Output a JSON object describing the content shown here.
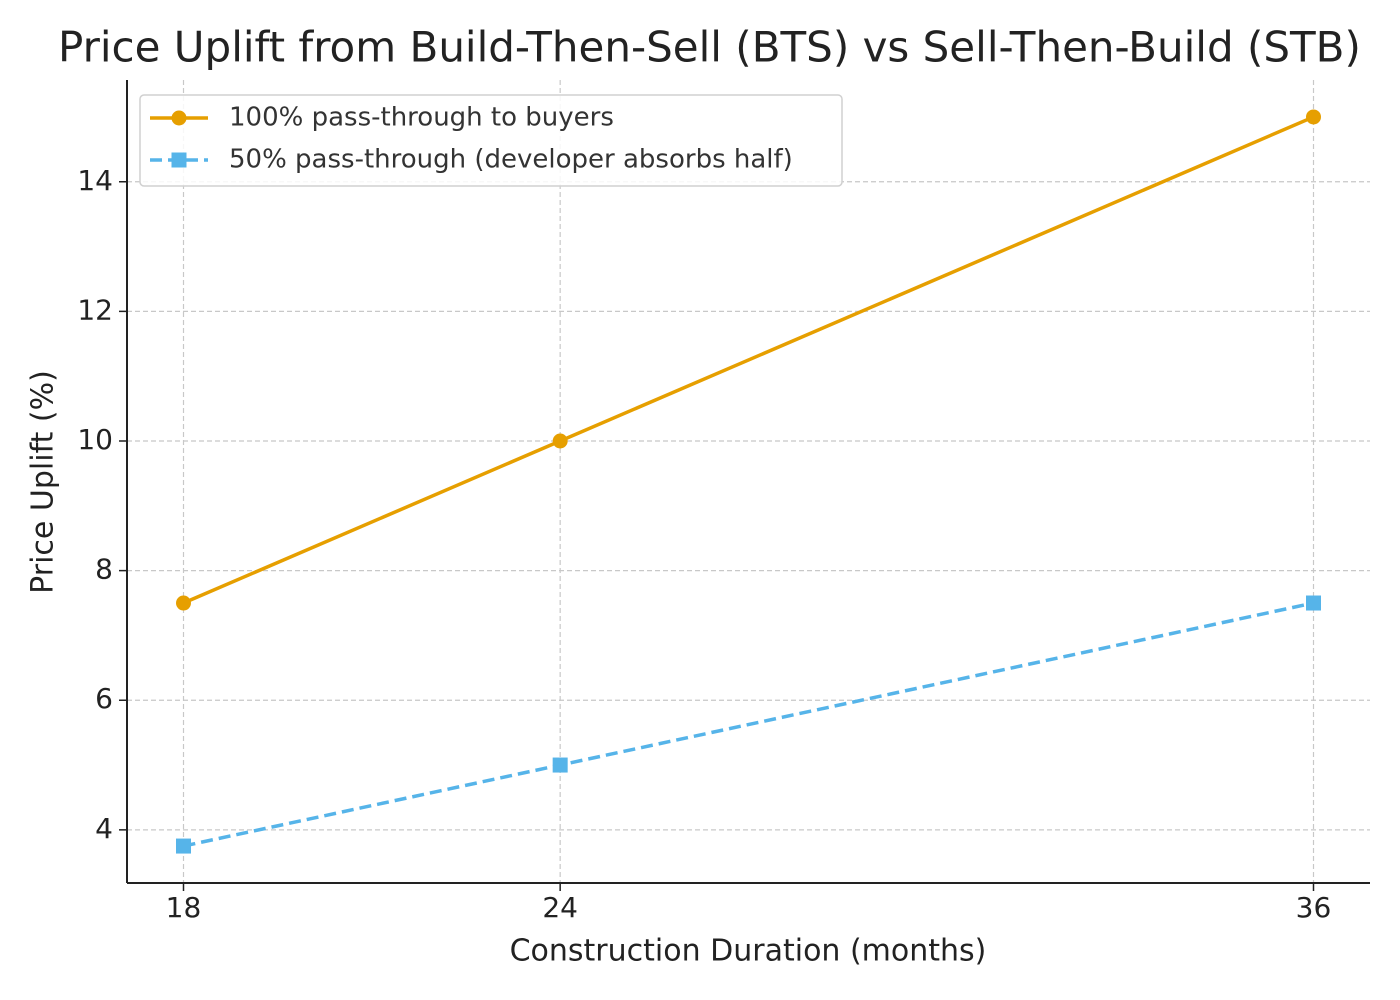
{
  "chart_data": {
    "type": "line",
    "title": "Price Uplift from Build-Then-Sell (BTS) vs Sell-Then-Build (STB)",
    "xlabel": "Construction Duration (months)",
    "ylabel": "Price Uplift (%)",
    "x": [
      18,
      24,
      36
    ],
    "series": [
      {
        "name": "100% pass-through to buyers",
        "color": "#e69f00",
        "marker": "circle",
        "dash": "solid",
        "values": [
          7.5,
          10,
          15
        ]
      },
      {
        "name": "50% pass-through (developer absorbs half)",
        "color": "#56b4e9",
        "marker": "square",
        "dash": "dashed",
        "values": [
          3.75,
          5,
          7.5
        ]
      }
    ],
    "xlim": [
      17.1,
      36.9
    ],
    "ylim": [
      3.18,
      15.57
    ],
    "xticks": [
      18,
      24,
      36
    ],
    "yticks": [
      4,
      6,
      8,
      10,
      12,
      14
    ],
    "grid": true,
    "legend": "upper left"
  }
}
